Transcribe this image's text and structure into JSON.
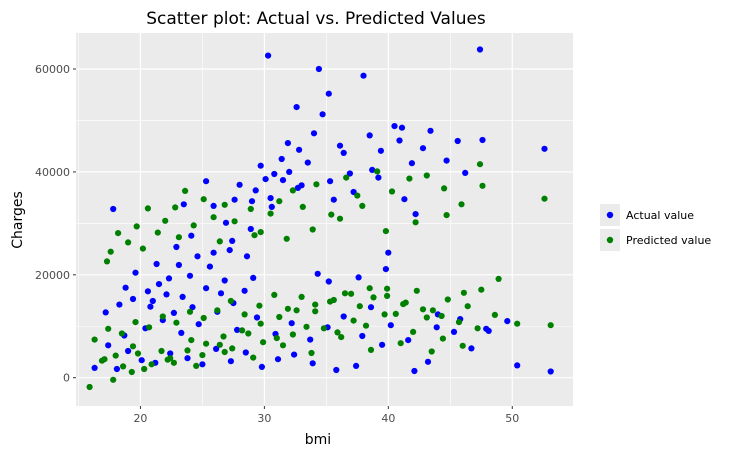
{
  "chart_data": {
    "type": "scatter",
    "title": "Scatter plot: Actual vs. Predicted Values",
    "xlabel": "bmi",
    "ylabel": "Charges",
    "xlim": [
      14.8,
      54.9
    ],
    "ylim": [
      -5500,
      67000
    ],
    "x_ticks": [
      20,
      30,
      40,
      50
    ],
    "y_ticks": [
      0,
      20000,
      40000,
      60000
    ],
    "x_tick_labels": [
      "20",
      "30",
      "40",
      "50"
    ],
    "y_tick_labels": [
      "0",
      "20000",
      "40000",
      "60000"
    ],
    "grid": true,
    "legend_position": "right",
    "colors": {
      "panel": "#ebebeb",
      "grid": "#ffffff",
      "actual": "#0000ff",
      "predicted": "#008000"
    },
    "series": [
      {
        "name": "Actual value",
        "color": "#0000ff",
        "points": [
          [
            47.4,
            63800
          ],
          [
            30.3,
            62600
          ],
          [
            34.4,
            60000
          ],
          [
            38.0,
            58700
          ],
          [
            35.2,
            55200
          ],
          [
            32.6,
            52600
          ],
          [
            34.7,
            51200
          ],
          [
            40.5,
            48900
          ],
          [
            41.1,
            48600
          ],
          [
            43.4,
            48000
          ],
          [
            38.5,
            47100
          ],
          [
            45.6,
            46000
          ],
          [
            47.6,
            46200
          ],
          [
            52.6,
            44500
          ],
          [
            44.7,
            42200
          ],
          [
            46.2,
            39800
          ],
          [
            36.9,
            39700
          ],
          [
            32.0,
            40000
          ],
          [
            30.8,
            39600
          ],
          [
            31.5,
            38400
          ],
          [
            33.0,
            37400
          ],
          [
            35.3,
            38200
          ],
          [
            28.0,
            37500
          ],
          [
            25.3,
            38200
          ],
          [
            30.5,
            34900
          ],
          [
            27.6,
            34600
          ],
          [
            29.0,
            34300
          ],
          [
            25.9,
            33400
          ],
          [
            23.5,
            33700
          ],
          [
            17.8,
            32800
          ],
          [
            31.4,
            42500
          ],
          [
            32.8,
            44300
          ],
          [
            36.1,
            45100
          ],
          [
            29.7,
            41200
          ],
          [
            41.3,
            34700
          ],
          [
            42.2,
            31800
          ],
          [
            40.0,
            24300
          ],
          [
            39.8,
            21100
          ],
          [
            37.6,
            19500
          ],
          [
            35.2,
            18700
          ],
          [
            34.3,
            20200
          ],
          [
            29.1,
            19400
          ],
          [
            28.6,
            23600
          ],
          [
            27.2,
            24800
          ],
          [
            25.9,
            24300
          ],
          [
            24.6,
            23600
          ],
          [
            23.1,
            21900
          ],
          [
            22.3,
            19300
          ],
          [
            21.5,
            18200
          ],
          [
            20.6,
            16800
          ],
          [
            19.4,
            15300
          ],
          [
            18.3,
            14200
          ],
          [
            17.2,
            12700
          ],
          [
            20.8,
            13800
          ],
          [
            25.3,
            17400
          ],
          [
            26.8,
            18900
          ],
          [
            28.4,
            16900
          ],
          [
            27.5,
            14500
          ],
          [
            24.2,
            13700
          ],
          [
            22.7,
            12600
          ],
          [
            50.4,
            2400
          ],
          [
            53.1,
            1200
          ],
          [
            44.0,
            12300
          ],
          [
            45.3,
            8900
          ],
          [
            46.7,
            5700
          ],
          [
            47.9,
            9500
          ],
          [
            43.2,
            3100
          ],
          [
            42.1,
            1300
          ],
          [
            39.5,
            6400
          ],
          [
            37.4,
            2300
          ],
          [
            35.8,
            1500
          ],
          [
            33.9,
            2800
          ],
          [
            32.4,
            4500
          ],
          [
            31.1,
            3600
          ],
          [
            29.8,
            2100
          ],
          [
            28.5,
            4900
          ],
          [
            27.3,
            3200
          ],
          [
            26.1,
            5600
          ],
          [
            25.0,
            2600
          ],
          [
            23.8,
            3800
          ],
          [
            22.4,
            4700
          ],
          [
            21.2,
            2900
          ],
          [
            20.1,
            3400
          ],
          [
            19.0,
            5200
          ],
          [
            18.1,
            1700
          ],
          [
            17.4,
            6300
          ],
          [
            16.3,
            1900
          ],
          [
            18.7,
            8200
          ],
          [
            20.4,
            9600
          ],
          [
            21.8,
            11200
          ],
          [
            23.3,
            8700
          ],
          [
            24.7,
            10400
          ],
          [
            26.2,
            12800
          ],
          [
            27.8,
            9300
          ],
          [
            29.4,
            11700
          ],
          [
            30.9,
            8500
          ],
          [
            32.2,
            10600
          ],
          [
            33.7,
            7400
          ],
          [
            35.1,
            9800
          ],
          [
            36.4,
            11900
          ],
          [
            37.9,
            8100
          ],
          [
            38.6,
            13700
          ],
          [
            40.2,
            10200
          ],
          [
            41.6,
            7300
          ],
          [
            43.9,
            9800
          ],
          [
            45.8,
            11400
          ],
          [
            48.1,
            9100
          ],
          [
            49.6,
            11000
          ],
          [
            38.7,
            40400
          ],
          [
            36.4,
            43700
          ],
          [
            34.0,
            47500
          ],
          [
            33.5,
            41800
          ],
          [
            31.9,
            45600
          ],
          [
            30.1,
            38600
          ],
          [
            29.3,
            36400
          ],
          [
            26.9,
            30100
          ],
          [
            24.1,
            27600
          ],
          [
            22.9,
            25400
          ],
          [
            21.3,
            22100
          ],
          [
            19.6,
            20400
          ],
          [
            18.8,
            17500
          ],
          [
            30.6,
            33200
          ],
          [
            32.7,
            36900
          ],
          [
            35.6,
            34600
          ],
          [
            37.2,
            36100
          ],
          [
            39.2,
            38900
          ],
          [
            41.9,
            41700
          ],
          [
            42.8,
            44600
          ],
          [
            40.9,
            46100
          ],
          [
            39.4,
            44100
          ],
          [
            27.4,
            26600
          ],
          [
            28.9,
            28900
          ],
          [
            25.6,
            21600
          ],
          [
            24.0,
            19800
          ],
          [
            26.5,
            16400
          ],
          [
            23.4,
            15700
          ],
          [
            22.1,
            16200
          ],
          [
            21.0,
            14900
          ]
        ]
      },
      {
        "name": "Predicted value",
        "color": "#008000",
        "points": [
          [
            47.4,
            41500
          ],
          [
            52.6,
            34800
          ],
          [
            47.6,
            37300
          ],
          [
            44.7,
            31600
          ],
          [
            43.1,
            39300
          ],
          [
            41.7,
            38700
          ],
          [
            40.3,
            36200
          ],
          [
            39.1,
            40100
          ],
          [
            37.5,
            35400
          ],
          [
            36.6,
            38900
          ],
          [
            35.4,
            31700
          ],
          [
            34.2,
            37600
          ],
          [
            33.1,
            33200
          ],
          [
            32.3,
            36400
          ],
          [
            31.2,
            34300
          ],
          [
            30.5,
            31900
          ],
          [
            29.7,
            28300
          ],
          [
            28.9,
            32800
          ],
          [
            27.6,
            30400
          ],
          [
            26.8,
            33600
          ],
          [
            25.9,
            31200
          ],
          [
            25.1,
            34700
          ],
          [
            24.3,
            29600
          ],
          [
            23.6,
            36300
          ],
          [
            22.8,
            33100
          ],
          [
            22.0,
            30500
          ],
          [
            21.4,
            28200
          ],
          [
            20.6,
            32900
          ],
          [
            19.7,
            29400
          ],
          [
            19.0,
            26300
          ],
          [
            18.2,
            28100
          ],
          [
            17.6,
            24500
          ],
          [
            17.3,
            22600
          ],
          [
            20.2,
            25100
          ],
          [
            23.1,
            27300
          ],
          [
            26.4,
            26500
          ],
          [
            29.2,
            27700
          ],
          [
            31.8,
            27000
          ],
          [
            33.9,
            28800
          ],
          [
            36.1,
            30900
          ],
          [
            37.9,
            33400
          ],
          [
            39.8,
            28500
          ],
          [
            42.2,
            30200
          ],
          [
            44.5,
            36800
          ],
          [
            45.9,
            33700
          ],
          [
            48.9,
            19200
          ],
          [
            47.5,
            17100
          ],
          [
            46.1,
            16500
          ],
          [
            44.8,
            15200
          ],
          [
            43.6,
            13100
          ],
          [
            42.3,
            16900
          ],
          [
            41.2,
            14300
          ],
          [
            39.9,
            17300
          ],
          [
            38.8,
            15600
          ],
          [
            37.7,
            13900
          ],
          [
            36.5,
            16400
          ],
          [
            35.3,
            14800
          ],
          [
            34.1,
            12900
          ],
          [
            33.0,
            15700
          ],
          [
            31.9,
            13400
          ],
          [
            30.8,
            16100
          ],
          [
            29.6,
            14000
          ],
          [
            28.4,
            12300
          ],
          [
            27.3,
            14900
          ],
          [
            26.2,
            13100
          ],
          [
            25.1,
            11600
          ],
          [
            24.0,
            12800
          ],
          [
            22.9,
            10700
          ],
          [
            21.8,
            11900
          ],
          [
            20.7,
            9800
          ],
          [
            19.6,
            10800
          ],
          [
            18.5,
            8600
          ],
          [
            17.4,
            9500
          ],
          [
            16.3,
            7400
          ],
          [
            17.1,
            3600
          ],
          [
            15.9,
            -1800
          ],
          [
            17.8,
            -400
          ],
          [
            19.3,
            1100
          ],
          [
            20.9,
            2600
          ],
          [
            22.4,
            3800
          ],
          [
            23.8,
            5300
          ],
          [
            25.3,
            6600
          ],
          [
            26.7,
            8000
          ],
          [
            28.2,
            9200
          ],
          [
            29.7,
            10500
          ],
          [
            31.2,
            11800
          ],
          [
            32.6,
            13100
          ],
          [
            34.1,
            14200
          ],
          [
            35.6,
            15100
          ],
          [
            37.0,
            16300
          ],
          [
            38.5,
            17400
          ],
          [
            39.9,
            15900
          ],
          [
            41.4,
            14600
          ],
          [
            42.8,
            13300
          ],
          [
            44.3,
            12000
          ],
          [
            45.7,
            10800
          ],
          [
            47.2,
            9600
          ],
          [
            50.4,
            10500
          ],
          [
            53.1,
            10200
          ],
          [
            48.6,
            12200
          ],
          [
            46.4,
            13900
          ],
          [
            43.1,
            11700
          ],
          [
            40.6,
            12400
          ],
          [
            38.2,
            10100
          ],
          [
            35.9,
            8800
          ],
          [
            33.4,
            9900
          ],
          [
            31.0,
            7700
          ],
          [
            28.7,
            8600
          ],
          [
            26.4,
            6400
          ],
          [
            24.1,
            7300
          ],
          [
            21.7,
            5200
          ],
          [
            19.4,
            6100
          ],
          [
            18.0,
            4300
          ],
          [
            20.3,
            1700
          ],
          [
            22.7,
            2900
          ],
          [
            25.0,
            4400
          ],
          [
            27.4,
            5700
          ],
          [
            29.9,
            6900
          ],
          [
            32.3,
            8400
          ],
          [
            34.8,
            9600
          ],
          [
            37.2,
            11100
          ],
          [
            39.7,
            12300
          ],
          [
            42.0,
            8900
          ],
          [
            44.4,
            7600
          ],
          [
            46.0,
            6200
          ],
          [
            43.5,
            5100
          ],
          [
            41.0,
            6700
          ],
          [
            38.6,
            5400
          ],
          [
            36.2,
            7900
          ],
          [
            33.8,
            4800
          ],
          [
            31.5,
            6300
          ],
          [
            29.1,
            3900
          ],
          [
            26.8,
            5000
          ],
          [
            24.5,
            2300
          ],
          [
            22.2,
            3500
          ],
          [
            19.8,
            4700
          ],
          [
            18.6,
            2200
          ],
          [
            16.9,
            3300
          ]
        ]
      }
    ]
  }
}
